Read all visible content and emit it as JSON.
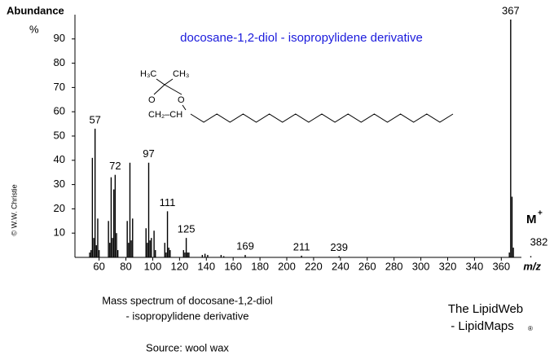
{
  "chart_data": {
    "type": "bar",
    "title": "docosane-1,2-diol  -  isopropylidene derivative",
    "y_label": "Abundance",
    "y_unit": "%",
    "x_label": "m/z",
    "x": [
      53,
      54,
      55,
      56,
      57,
      58,
      59,
      60,
      67,
      68,
      69,
      70,
      71,
      72,
      73,
      74,
      81,
      82,
      83,
      84,
      85,
      95,
      96,
      97,
      98,
      99,
      101,
      102,
      109,
      110,
      111,
      112,
      113,
      123,
      124,
      125,
      126,
      127,
      137,
      139,
      141,
      151,
      153,
      169,
      211,
      239,
      366,
      367,
      368,
      369,
      382
    ],
    "values": [
      2,
      3,
      41,
      8,
      53,
      5,
      16,
      3,
      15,
      6,
      33,
      8,
      28,
      34,
      10,
      3,
      15,
      6,
      39,
      7,
      16,
      12,
      6,
      39,
      7,
      8,
      11,
      3,
      6,
      2,
      19,
      4,
      3,
      3,
      2,
      8,
      2,
      2,
      1,
      1.5,
      1,
      1,
      0.5,
      1,
      0.7,
      0.5,
      2,
      98,
      25,
      4,
      0.5
    ],
    "labeled_peaks": [
      57,
      72,
      97,
      111,
      125,
      169,
      211,
      239,
      367,
      382
    ],
    "molecular_ion": "M",
    "molecular_ion_sup": "+",
    "color": "#000000",
    "xlim": [
      42,
      375
    ],
    "xticks": [
      60,
      80,
      100,
      120,
      140,
      160,
      180,
      200,
      220,
      240,
      260,
      280,
      300,
      320,
      340,
      360
    ],
    "ylim": [
      0,
      100
    ],
    "yticks": [
      10,
      20,
      30,
      40,
      50,
      60,
      70,
      80,
      90
    ]
  },
  "structure": {
    "labels": [
      "H₃C",
      "CH₃",
      "O",
      "O",
      "CH₂–CH"
    ]
  },
  "caption": [
    "Mass spectrum of docosane-1,2-diol",
    "- isopropylidene derivative"
  ],
  "source": "Source: wool wax",
  "branding": [
    "The LipidWeb",
    "- LipidMaps",
    "®"
  ],
  "copyright": "© W.W. Christie"
}
